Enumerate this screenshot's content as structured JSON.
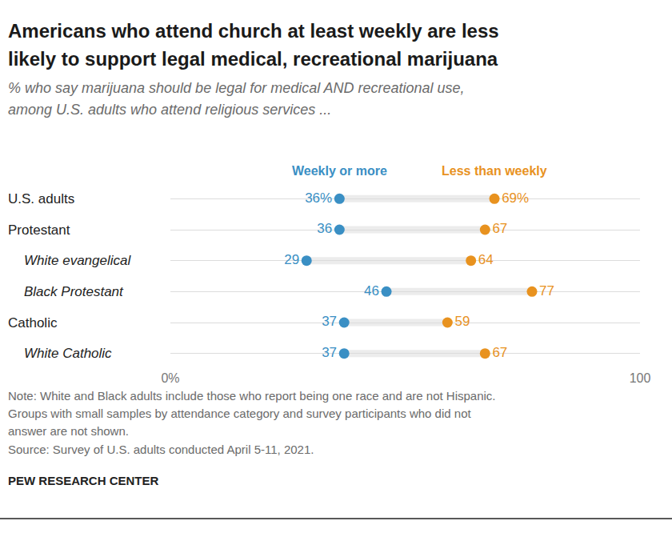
{
  "chart_data": {
    "type": "dot",
    "title": [
      "Americans who attend church at least weekly are less",
      "likely to support legal medical, recreational marijuana"
    ],
    "subtitle": [
      "% who say marijuana should be legal for medical AND recreational use,",
      "among U.S. adults who attend religious services ..."
    ],
    "categories": [
      "U.S. adults",
      "Protestant",
      "White evangelical",
      "Black Protestant",
      "Catholic",
      "White Catholic"
    ],
    "series": [
      {
        "name": "Weekly or more",
        "color": "#3a8fc4",
        "values": [
          36,
          36,
          29,
          46,
          37,
          37
        ],
        "value_labels": [
          "36%",
          "36",
          "29",
          "46",
          "37",
          "37"
        ]
      },
      {
        "name": "Less than weekly",
        "color": "#e8921f",
        "values": [
          69,
          67,
          64,
          77,
          59,
          67
        ],
        "value_labels": [
          "69%",
          "67",
          "64",
          "77",
          "59",
          "67"
        ]
      }
    ],
    "orientation": "horizontal",
    "xlim": [
      0,
      100
    ],
    "xticks": [
      {
        "value": 0,
        "label": "0%"
      },
      100
    ],
    "grid": true,
    "legend": "top",
    "data_labels": true,
    "note": [
      "Note: White and Black adults include those who report being one race and are not Hispanic.",
      "Groups with small samples by attendance category and survey participants who did not",
      "answer are not shown."
    ],
    "source": "Source: Survey of U.S. adults conducted April 5-11, 2021.",
    "credit": "PEW RESEARCH CENTER"
  }
}
